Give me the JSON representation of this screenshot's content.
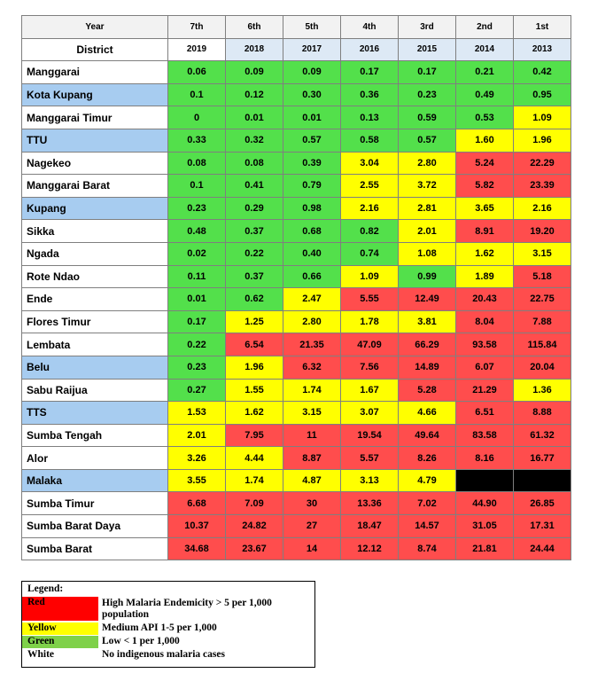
{
  "header": {
    "col1_label": "Year",
    "district_label": "District",
    "ranks": [
      "7th",
      "6th",
      "5th",
      "4th",
      "3rd",
      "2nd",
      "1st"
    ],
    "years": [
      "2019",
      "2018",
      "2017",
      "2016",
      "2015",
      "2014",
      "2013"
    ]
  },
  "rows": [
    {
      "name": "Manggarai",
      "name_bg": "white",
      "values": [
        "0.06",
        "0.09",
        "0.09",
        "0.17",
        "0.17",
        "0.21",
        "0.42"
      ],
      "colors": [
        "green",
        "green",
        "green",
        "green",
        "green",
        "green",
        "green"
      ]
    },
    {
      "name": "Kota Kupang",
      "name_bg": "blue",
      "values": [
        "0.1",
        "0.12",
        "0.30",
        "0.36",
        "0.23",
        "0.49",
        "0.95"
      ],
      "colors": [
        "green",
        "green",
        "green",
        "green",
        "green",
        "green",
        "green"
      ]
    },
    {
      "name": "Manggarai Timur",
      "name_bg": "white",
      "values": [
        "0",
        "0.01",
        "0.01",
        "0.13",
        "0.59",
        "0.53",
        "1.09"
      ],
      "colors": [
        "green",
        "green",
        "green",
        "green",
        "green",
        "green",
        "yellow"
      ]
    },
    {
      "name": "TTU",
      "name_bg": "blue",
      "values": [
        "0.33",
        "0.32",
        "0.57",
        "0.58",
        "0.57",
        "1.60",
        "1.96"
      ],
      "colors": [
        "green",
        "green",
        "green",
        "green",
        "green",
        "yellow",
        "yellow"
      ]
    },
    {
      "name": "Nagekeo",
      "name_bg": "white",
      "values": [
        "0.08",
        "0.08",
        "0.39",
        "3.04",
        "2.80",
        "5.24",
        "22.29"
      ],
      "colors": [
        "green",
        "green",
        "green",
        "yellow",
        "yellow",
        "red",
        "red"
      ]
    },
    {
      "name": "Manggarai Barat",
      "name_bg": "white",
      "values": [
        "0.1",
        "0.41",
        "0.79",
        "2.55",
        "3.72",
        "5.82",
        "23.39"
      ],
      "colors": [
        "green",
        "green",
        "green",
        "yellow",
        "yellow",
        "red",
        "red"
      ]
    },
    {
      "name": "Kupang",
      "name_bg": "blue",
      "values": [
        "0.23",
        "0.29",
        "0.98",
        "2.16",
        "2.81",
        "3.65",
        "2.16"
      ],
      "colors": [
        "green",
        "green",
        "green",
        "yellow",
        "yellow",
        "yellow",
        "yellow"
      ]
    },
    {
      "name": "Sikka",
      "name_bg": "white",
      "values": [
        "0.48",
        "0.37",
        "0.68",
        "0.82",
        "2.01",
        "8.91",
        "19.20"
      ],
      "colors": [
        "green",
        "green",
        "green",
        "green",
        "yellow",
        "red",
        "red"
      ]
    },
    {
      "name": "Ngada",
      "name_bg": "white",
      "values": [
        "0.02",
        "0.22",
        "0.40",
        "0.74",
        "1.08",
        "1.62",
        "3.15"
      ],
      "colors": [
        "green",
        "green",
        "green",
        "green",
        "yellow",
        "yellow",
        "yellow"
      ]
    },
    {
      "name": "Rote Ndao",
      "name_bg": "white",
      "values": [
        "0.11",
        "0.37",
        "0.66",
        "1.09",
        "0.99",
        "1.89",
        "5.18"
      ],
      "colors": [
        "green",
        "green",
        "green",
        "yellow",
        "green",
        "yellow",
        "red"
      ]
    },
    {
      "name": "Ende",
      "name_bg": "white",
      "values": [
        "0.01",
        "0.62",
        "2.47",
        "5.55",
        "12.49",
        "20.43",
        "22.75"
      ],
      "colors": [
        "green",
        "green",
        "yellow",
        "red",
        "red",
        "red",
        "red"
      ]
    },
    {
      "name": "Flores Timur",
      "name_bg": "white",
      "values": [
        "0.17",
        "1.25",
        "2.80",
        "1.78",
        "3.81",
        "8.04",
        "7.88"
      ],
      "colors": [
        "green",
        "yellow",
        "yellow",
        "yellow",
        "yellow",
        "red",
        "red"
      ]
    },
    {
      "name": "Lembata",
      "name_bg": "white",
      "values": [
        "0.22",
        "6.54",
        "21.35",
        "47.09",
        "66.29",
        "93.58",
        "115.84"
      ],
      "colors": [
        "green",
        "red",
        "red",
        "red",
        "red",
        "red",
        "red"
      ]
    },
    {
      "name": "Belu",
      "name_bg": "blue",
      "values": [
        "0.23",
        "1.96",
        "6.32",
        "7.56",
        "14.89",
        "6.07",
        "20.04"
      ],
      "colors": [
        "green",
        "yellow",
        "red",
        "red",
        "red",
        "red",
        "red"
      ]
    },
    {
      "name": "Sabu Raijua",
      "name_bg": "white",
      "values": [
        "0.27",
        "1.55",
        "1.74",
        "1.67",
        "5.28",
        "21.29",
        "1.36"
      ],
      "colors": [
        "green",
        "yellow",
        "yellow",
        "yellow",
        "red",
        "red",
        "yellow"
      ]
    },
    {
      "name": "TTS",
      "name_bg": "blue",
      "values": [
        "1.53",
        "1.62",
        "3.15",
        "3.07",
        "4.66",
        "6.51",
        "8.88"
      ],
      "colors": [
        "yellow",
        "yellow",
        "yellow",
        "yellow",
        "yellow",
        "red",
        "red"
      ]
    },
    {
      "name": "Sumba Tengah",
      "name_bg": "white",
      "values": [
        "2.01",
        "7.95",
        "11",
        "19.54",
        "49.64",
        "83.58",
        "61.32"
      ],
      "colors": [
        "yellow",
        "red",
        "red",
        "red",
        "red",
        "red",
        "red"
      ]
    },
    {
      "name": "Alor",
      "name_bg": "white",
      "values": [
        "3.26",
        "4.44",
        "8.87",
        "5.57",
        "8.26",
        "8.16",
        "16.77"
      ],
      "colors": [
        "yellow",
        "yellow",
        "red",
        "red",
        "red",
        "red",
        "red"
      ]
    },
    {
      "name": "Malaka",
      "name_bg": "blue",
      "values": [
        "3.55",
        "1.74",
        "4.87",
        "3.13",
        "4.79",
        "",
        ""
      ],
      "colors": [
        "yellow",
        "yellow",
        "yellow",
        "yellow",
        "yellow",
        "black",
        "black"
      ]
    },
    {
      "name": "Sumba Timur",
      "name_bg": "white",
      "values": [
        "6.68",
        "7.09",
        "30",
        "13.36",
        "7.02",
        "44.90",
        "26.85"
      ],
      "colors": [
        "red",
        "red",
        "red",
        "red",
        "red",
        "red",
        "red"
      ]
    },
    {
      "name": "Sumba Barat Daya",
      "name_bg": "white",
      "values": [
        "10.37",
        "24.82",
        "27",
        "18.47",
        "14.57",
        "31.05",
        "17.31"
      ],
      "colors": [
        "red",
        "red",
        "red",
        "red",
        "red",
        "red",
        "red"
      ]
    },
    {
      "name": "Sumba Barat",
      "name_bg": "white",
      "values": [
        "34.68",
        "23.67",
        "14",
        "12.12",
        "8.74",
        "21.81",
        "24.44"
      ],
      "colors": [
        "red",
        "red",
        "red",
        "red",
        "red",
        "red",
        "red"
      ]
    }
  ],
  "legend": {
    "title": "Legend:",
    "items": [
      {
        "swatch_label": "Red",
        "swatch_color": "#ff0000",
        "description": "High Malaria Endemicity > 5 per 1,000 population"
      },
      {
        "swatch_label": "Yellow",
        "swatch_color": "#ffff00",
        "description": "Medium API 1-5 per 1,000"
      },
      {
        "swatch_label": "Green",
        "swatch_color": "#7fd14a",
        "description": "Low < 1 per 1,000"
      },
      {
        "swatch_label": "White",
        "swatch_color": "#ffffff",
        "description": "No indigenous malaria cases"
      }
    ]
  }
}
